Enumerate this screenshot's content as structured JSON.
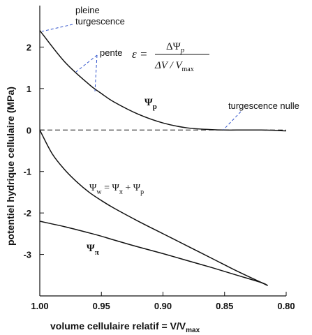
{
  "chart_data": {
    "type": "line",
    "title": "",
    "xlabel": "volume cellulaire relatif = V/V",
    "xlabel_sub": "max",
    "ylabel": "potentiel hydrique cellulaire  (MPa)",
    "xlim": [
      1.0,
      0.8
    ],
    "ylim": [
      -4.0,
      3.0
    ],
    "x_reversed": true,
    "x_ticks": [
      "1.00",
      "0.95",
      "0.90",
      "0.85",
      "0.80"
    ],
    "y_ticks": [
      "2",
      "1",
      "0",
      "-1",
      "-2",
      "-3"
    ],
    "grid": false,
    "series": [
      {
        "name": "Ψp",
        "x": [
          1.0,
          0.98,
          0.96,
          0.95,
          0.94,
          0.92,
          0.9,
          0.88,
          0.86,
          0.85,
          0.84,
          0.82,
          0.8
        ],
        "y": [
          2.4,
          1.65,
          1.1,
          0.88,
          0.68,
          0.38,
          0.17,
          0.05,
          0.01,
          0.0,
          0.0,
          0.0,
          -0.02
        ]
      },
      {
        "name": "Ψw = Ψπ + Ψp",
        "x": [
          1.0,
          0.99,
          0.98,
          0.97,
          0.96,
          0.95,
          0.94,
          0.92,
          0.9,
          0.88,
          0.86,
          0.84,
          0.82,
          0.815
        ],
        "y": [
          0.0,
          -0.57,
          -0.95,
          -1.25,
          -1.5,
          -1.7,
          -1.88,
          -2.2,
          -2.5,
          -2.8,
          -3.1,
          -3.4,
          -3.68,
          -3.75
        ]
      },
      {
        "name": "Ψπ",
        "x": [
          1.0,
          0.98,
          0.96,
          0.95,
          0.94,
          0.92,
          0.9,
          0.88,
          0.86,
          0.84,
          0.82,
          0.815
        ],
        "y": [
          -2.2,
          -2.33,
          -2.48,
          -2.56,
          -2.65,
          -2.82,
          -2.98,
          -3.15,
          -3.32,
          -3.5,
          -3.68,
          -3.75
        ]
      }
    ],
    "reference_line": {
      "y": 0,
      "style": "dashed"
    },
    "labels": {
      "psi_p": "Ψ",
      "psi_p_sub": "p",
      "psi_w_main": "Ψ",
      "psi_w_sub": "w",
      "psi_w_eq": " = Ψ",
      "psi_w_sub_pi": "π",
      "psi_w_plus": " + Ψ",
      "psi_w_sub_p": "p",
      "psi_pi": "Ψ",
      "psi_pi_sub": "π"
    },
    "annotations": {
      "pleine": "pleine",
      "turgescence": "turgescence",
      "pente": "pente",
      "turgescence_nulle": "turgescence nulle",
      "eps_symbol": "ε =",
      "formula_num": "ΔΨ",
      "formula_num_sub": "p",
      "formula_den": "ΔV / V",
      "formula_den_sub": "max"
    },
    "colors": {
      "line": "#111111",
      "annotation_dash": "#3355cc"
    }
  }
}
